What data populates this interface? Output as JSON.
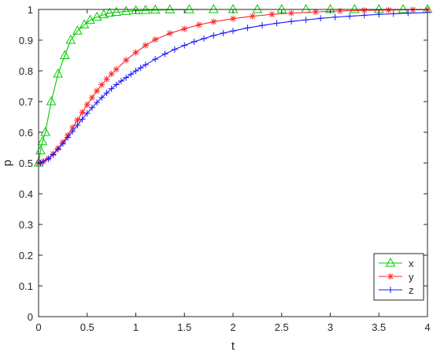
{
  "chart_data": {
    "type": "line",
    "xlabel": "t",
    "ylabel": "p",
    "xlim": [
      0,
      4
    ],
    "ylim": [
      0,
      1
    ],
    "xticks": [
      0,
      0.5,
      1,
      1.5,
      2,
      2.5,
      3,
      3.5,
      4
    ],
    "yticks": [
      0,
      0.1,
      0.2,
      0.3,
      0.4,
      0.5,
      0.6,
      0.7,
      0.8,
      0.9,
      1
    ],
    "xtick_labels": [
      "0",
      "0.5",
      "1",
      "1.5",
      "2",
      "2.5",
      "3",
      "3.5",
      "4"
    ],
    "ytick_labels": [
      "0",
      "0.1",
      "0.2",
      "0.3",
      "0.4",
      "0.5",
      "0.6",
      "0.7",
      "0.8",
      "0.9",
      "1"
    ],
    "grid": false,
    "legend_position": "bottom-right",
    "series": [
      {
        "name": "x",
        "color": "#00cc00",
        "marker": "triangle",
        "x": [
          0,
          0.02,
          0.04,
          0.07,
          0.13,
          0.2,
          0.27,
          0.33,
          0.4,
          0.47,
          0.53,
          0.6,
          0.67,
          0.73,
          0.8,
          0.9,
          1.0,
          1.1,
          1.2,
          1.35,
          1.55,
          1.8,
          2.0,
          2.25,
          2.5,
          2.75,
          3.0,
          3.25,
          3.5,
          3.75,
          4.0
        ],
        "y": [
          0.5,
          0.54,
          0.57,
          0.6,
          0.7,
          0.79,
          0.85,
          0.9,
          0.93,
          0.95,
          0.965,
          0.975,
          0.983,
          0.988,
          0.991,
          0.994,
          0.996,
          0.997,
          0.998,
          0.999,
          0.9995,
          1.0,
          1.0,
          1.0,
          1.0,
          1.0,
          1.0,
          1.0,
          1.0,
          1.0,
          1.0
        ]
      },
      {
        "name": "y",
        "color": "#ff2a2a",
        "marker": "asterisk",
        "x": [
          0,
          0.02,
          0.05,
          0.1,
          0.15,
          0.2,
          0.25,
          0.3,
          0.35,
          0.4,
          0.45,
          0.5,
          0.55,
          0.6,
          0.65,
          0.7,
          0.75,
          0.8,
          0.9,
          1.0,
          1.1,
          1.2,
          1.35,
          1.5,
          1.65,
          1.8,
          2.0,
          2.2,
          2.4,
          2.6,
          2.85,
          3.1,
          3.35,
          3.6,
          3.85,
          4.0
        ],
        "y": [
          0.5,
          0.5,
          0.505,
          0.515,
          0.53,
          0.548,
          0.568,
          0.59,
          0.615,
          0.64,
          0.665,
          0.69,
          0.713,
          0.735,
          0.755,
          0.773,
          0.79,
          0.805,
          0.835,
          0.86,
          0.883,
          0.902,
          0.922,
          0.937,
          0.95,
          0.96,
          0.97,
          0.978,
          0.984,
          0.988,
          0.992,
          0.995,
          0.997,
          0.998,
          0.999,
          0.999
        ]
      },
      {
        "name": "z",
        "color": "#1a1aff",
        "marker": "plus",
        "x": [
          0,
          0.02,
          0.05,
          0.1,
          0.15,
          0.2,
          0.25,
          0.3,
          0.35,
          0.4,
          0.45,
          0.5,
          0.55,
          0.6,
          0.65,
          0.7,
          0.75,
          0.8,
          0.85,
          0.9,
          0.95,
          1.0,
          1.05,
          1.1,
          1.2,
          1.3,
          1.4,
          1.5,
          1.6,
          1.7,
          1.8,
          1.9,
          2.0,
          2.15,
          2.3,
          2.45,
          2.6,
          2.75,
          2.9,
          3.05,
          3.2,
          3.35,
          3.5,
          3.65,
          3.8,
          4.0
        ],
        "y": [
          0.5,
          0.5,
          0.505,
          0.513,
          0.527,
          0.545,
          0.563,
          0.583,
          0.603,
          0.623,
          0.643,
          0.662,
          0.68,
          0.697,
          0.713,
          0.728,
          0.742,
          0.755,
          0.767,
          0.778,
          0.789,
          0.8,
          0.81,
          0.82,
          0.838,
          0.855,
          0.87,
          0.883,
          0.895,
          0.905,
          0.915,
          0.923,
          0.93,
          0.94,
          0.948,
          0.955,
          0.961,
          0.966,
          0.971,
          0.975,
          0.978,
          0.981,
          0.984,
          0.986,
          0.988,
          0.99
        ]
      }
    ]
  }
}
